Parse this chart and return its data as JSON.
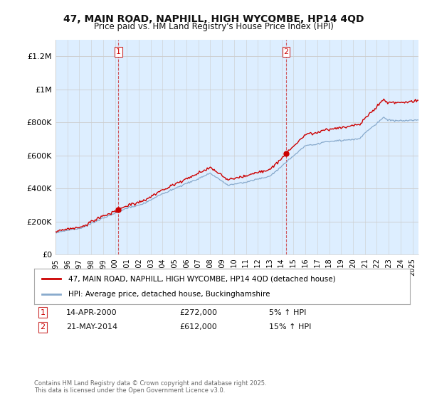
{
  "title": "47, MAIN ROAD, NAPHILL, HIGH WYCOMBE, HP14 4QD",
  "subtitle": "Price paid vs. HM Land Registry's House Price Index (HPI)",
  "ylabel_ticks": [
    "£0",
    "£200K",
    "£400K",
    "£600K",
    "£800K",
    "£1M",
    "£1.2M"
  ],
  "ytick_vals": [
    0,
    200000,
    400000,
    600000,
    800000,
    1000000,
    1200000
  ],
  "ylim": [
    0,
    1300000
  ],
  "xlim_start": 1995.0,
  "xlim_end": 2025.5,
  "line1_color": "#cc0000",
  "line2_color": "#88aacc",
  "fill_color": "#ddeeff",
  "purchase1_year": 2000.29,
  "purchase1_price": 272000,
  "purchase1_label": "1",
  "purchase2_year": 2014.38,
  "purchase2_price": 612000,
  "purchase2_label": "2",
  "legend_line1": "47, MAIN ROAD, NAPHILL, HIGH WYCOMBE, HP14 4QD (detached house)",
  "legend_line2": "HPI: Average price, detached house, Buckinghamshire",
  "annotation1_date": "14-APR-2000",
  "annotation1_price": "£272,000",
  "annotation1_pct": "5% ↑ HPI",
  "annotation2_date": "21-MAY-2014",
  "annotation2_price": "£612,000",
  "annotation2_pct": "15% ↑ HPI",
  "footer": "Contains HM Land Registry data © Crown copyright and database right 2025.\nThis data is licensed under the Open Government Licence v3.0.",
  "background_color": "#ffffff",
  "grid_color": "#cccccc"
}
